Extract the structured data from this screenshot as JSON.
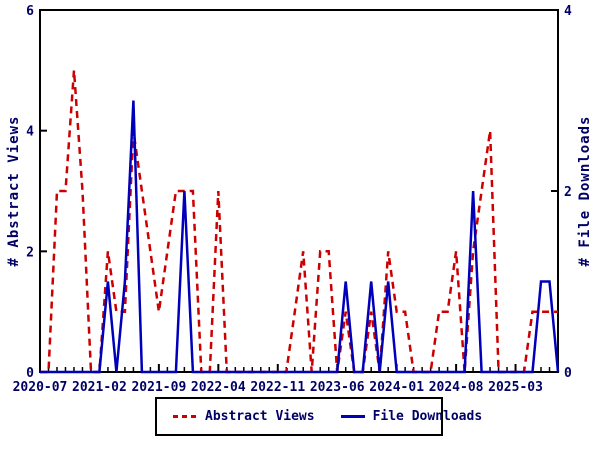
{
  "chart_data": {
    "type": "line",
    "title": "",
    "x": [
      "2020-07",
      "2020-08",
      "2020-09",
      "2020-10",
      "2020-11",
      "2020-12",
      "2021-01",
      "2021-02",
      "2021-03",
      "2021-04",
      "2021-05",
      "2021-06",
      "2021-07",
      "2021-08",
      "2021-09",
      "2021-10",
      "2021-11",
      "2021-12",
      "2022-01",
      "2022-02",
      "2022-03",
      "2022-04",
      "2022-05",
      "2022-06",
      "2022-07",
      "2022-08",
      "2022-09",
      "2022-10",
      "2022-11",
      "2022-12",
      "2023-01",
      "2023-02",
      "2023-03",
      "2023-04",
      "2023-05",
      "2023-06",
      "2023-07",
      "2023-08",
      "2023-09",
      "2023-10",
      "2023-11",
      "2023-12",
      "2024-01",
      "2024-02",
      "2024-03",
      "2024-04",
      "2024-05",
      "2024-06",
      "2024-07",
      "2024-08",
      "2024-09",
      "2024-10",
      "2024-11",
      "2024-12",
      "2025-01",
      "2025-02",
      "2025-03",
      "2025-04",
      "2025-05",
      "2025-06",
      "2025-07",
      "2025-08"
    ],
    "series": [
      {
        "name": "Abstract Views",
        "axis": "left",
        "color": "#cc0000",
        "style": "dashed",
        "values": [
          0,
          0,
          3,
          3,
          5,
          3,
          0,
          0,
          2,
          1,
          1,
          4,
          3,
          2,
          1,
          2,
          3,
          3,
          3,
          0,
          0,
          3,
          0,
          0,
          0,
          0,
          0,
          0,
          0,
          0,
          1,
          2,
          0,
          2,
          2,
          0,
          1,
          0,
          0,
          1,
          0,
          2,
          1,
          1,
          0,
          0,
          0,
          1,
          1,
          2,
          0,
          2,
          3,
          4,
          0,
          0,
          0,
          0,
          1,
          1,
          1,
          1
        ]
      },
      {
        "name": "File Downloads",
        "axis": "right",
        "color": "#0000bb",
        "style": "solid",
        "values": [
          0,
          0,
          0,
          0,
          0,
          0,
          0,
          0,
          1,
          0,
          1,
          3,
          0,
          0,
          0,
          0,
          0,
          2,
          0,
          0,
          0,
          0,
          0,
          0,
          0,
          0,
          0,
          0,
          0,
          0,
          0,
          0,
          0,
          0,
          0,
          0,
          1,
          0,
          0,
          1,
          0,
          1,
          0,
          0,
          0,
          0,
          0,
          0,
          0,
          0,
          0,
          2,
          0,
          0,
          0,
          0,
          0,
          0,
          0,
          1,
          1,
          0
        ]
      }
    ],
    "left_axis": {
      "label": "# Abstract Views",
      "range": [
        0,
        6
      ],
      "ticks": [
        0,
        2,
        4,
        6
      ]
    },
    "right_axis": {
      "label": "# File Downloads",
      "range": [
        0,
        4
      ],
      "ticks": [
        0,
        2,
        4
      ]
    },
    "x_axis": {
      "major_tick_month_indices": [
        0,
        7,
        14,
        21,
        28,
        35,
        42,
        49,
        56
      ],
      "major_tick_labels": [
        "2020-07",
        "2021-02",
        "2021-09",
        "2022-04",
        "2022-11",
        "2023-06",
        "2024-01",
        "2024-08",
        "2025-03"
      ],
      "minor_ticks": "monthly"
    },
    "legend": {
      "position": "bottom-center",
      "entries": [
        {
          "label": "Abstract Views",
          "style": "dashed",
          "color": "#cc0000"
        },
        {
          "label": "File Downloads",
          "style": "solid",
          "color": "#0000bb"
        }
      ]
    },
    "grid": false,
    "colors": {
      "axis": "#000000",
      "text": "#000066",
      "background": "#ffffff"
    }
  }
}
